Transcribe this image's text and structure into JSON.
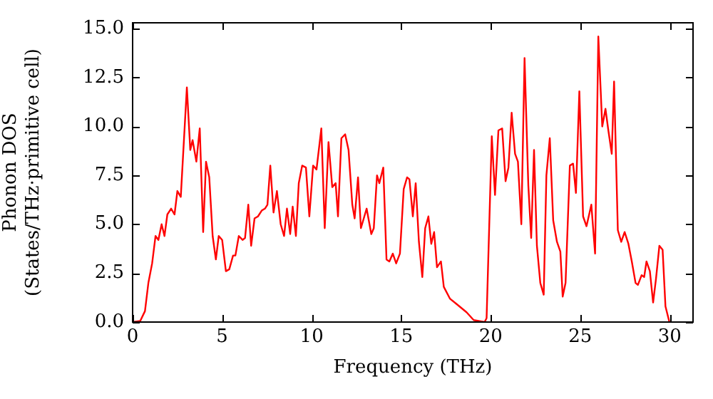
{
  "chart_data": {
    "type": "line",
    "xlabel": "Frequency (THz)",
    "ylabel": "Phonon DOS\n(States/THz·primitive cell)",
    "xlim": [
      0,
      31.3
    ],
    "ylim": [
      0,
      15.3
    ],
    "xticks": [
      0,
      5,
      10,
      15,
      20,
      25,
      30
    ],
    "yticks": [
      {
        "value": 0,
        "label": "0.0"
      },
      {
        "value": 2.5,
        "label": "2.5"
      },
      {
        "value": 5,
        "label": "5.0"
      },
      {
        "value": 7.5,
        "label": "7.5"
      },
      {
        "value": 10,
        "label": "10.0"
      },
      {
        "value": 12.5,
        "label": "12.5"
      },
      {
        "value": 15,
        "label": "15.0"
      }
    ],
    "grid": false,
    "legend": false,
    "marker": "none",
    "line_style": "solid",
    "series": [
      {
        "color": "#ff0000",
        "x": [
          0,
          0.43,
          0.69,
          0.88,
          1.09,
          1.28,
          1.44,
          1.62,
          1.78,
          1.94,
          2.15,
          2.34,
          2.5,
          2.69,
          3.03,
          3.22,
          3.35,
          3.56,
          3.75,
          3.94,
          4.1,
          4.28,
          4.47,
          4.65,
          4.81,
          5.0,
          5.21,
          5.4,
          5.61,
          5.74,
          5.93,
          6.14,
          6.28,
          6.46,
          6.62,
          6.81,
          7.0,
          7.21,
          7.39,
          7.53,
          7.69,
          7.87,
          8.06,
          8.27,
          8.46,
          8.62,
          8.8,
          8.94,
          9.12,
          9.28,
          9.47,
          9.68,
          9.87,
          10.08,
          10.27,
          10.54,
          10.73,
          10.94,
          11.15,
          11.34,
          11.47,
          11.66,
          11.87,
          12.06,
          12.27,
          12.4,
          12.59,
          12.75,
          13.07,
          13.33,
          13.47,
          13.65,
          13.78,
          14.0,
          14.18,
          14.34,
          14.53,
          14.72,
          14.93,
          15.14,
          15.33,
          15.46,
          15.65,
          15.81,
          15.99,
          16.18,
          16.34,
          16.52,
          16.68,
          16.84,
          17.0,
          17.22,
          17.38,
          17.72,
          18.12,
          18.65,
          19.05,
          19.66,
          19.77,
          20.06,
          20.24,
          20.43,
          20.64,
          20.83,
          20.99,
          21.17,
          21.36,
          21.52,
          21.71,
          21.89,
          22.1,
          22.26,
          22.42,
          22.58,
          22.77,
          22.96,
          23.11,
          23.3,
          23.49,
          23.7,
          23.89,
          24.02,
          24.18,
          24.42,
          24.6,
          24.76,
          24.95,
          25.16,
          25.35,
          25.62,
          25.83,
          26.01,
          26.23,
          26.41,
          26.57,
          26.76,
          26.89,
          27.1,
          27.29,
          27.48,
          27.69,
          27.88,
          28.09,
          28.22,
          28.43,
          28.57,
          28.7,
          28.89,
          29.07,
          29.23,
          29.42,
          29.6,
          29.76,
          29.98
        ],
        "values": [
          0,
          0.06,
          0.56,
          2.0,
          3.0,
          4.4,
          4.2,
          5.0,
          4.4,
          5.5,
          5.8,
          5.5,
          6.7,
          6.4,
          12.0,
          8.8,
          9.3,
          8.2,
          9.9,
          4.6,
          8.2,
          7.4,
          4.4,
          3.2,
          4.4,
          4.2,
          2.6,
          2.7,
          3.4,
          3.4,
          4.4,
          4.2,
          4.3,
          6.0,
          3.9,
          5.3,
          5.4,
          5.7,
          5.8,
          6.0,
          8.0,
          5.6,
          6.7,
          5.0,
          4.4,
          5.8,
          4.5,
          5.9,
          4.4,
          7.1,
          8.0,
          7.9,
          5.4,
          8.0,
          7.8,
          9.9,
          4.8,
          9.2,
          6.9,
          7.1,
          5.4,
          9.4,
          9.6,
          8.8,
          6.0,
          5.3,
          7.4,
          4.8,
          5.8,
          4.5,
          4.8,
          7.5,
          7.1,
          7.9,
          3.2,
          3.1,
          3.5,
          3.0,
          3.5,
          6.8,
          7.4,
          7.3,
          5.4,
          7.1,
          4.1,
          2.3,
          4.8,
          5.4,
          4.0,
          4.6,
          2.8,
          3.1,
          1.8,
          1.2,
          0.9,
          0.5,
          0.1,
          0,
          0.2,
          9.5,
          6.5,
          9.8,
          9.9,
          7.2,
          7.9,
          10.7,
          8.6,
          8.2,
          5.0,
          13.5,
          7.0,
          4.3,
          8.8,
          3.9,
          2.0,
          1.4,
          7.5,
          9.4,
          5.2,
          4.1,
          3.6,
          1.3,
          2.0,
          8.0,
          8.1,
          6.6,
          11.8,
          5.4,
          4.9,
          6.0,
          3.5,
          14.6,
          10.0,
          10.9,
          9.8,
          8.6,
          12.3,
          4.7,
          4.1,
          4.6,
          4.0,
          3.1,
          2.0,
          1.9,
          2.4,
          2.3,
          3.1,
          2.6,
          1.0,
          2.2,
          3.9,
          3.7,
          0.8,
          0
        ]
      }
    ]
  }
}
